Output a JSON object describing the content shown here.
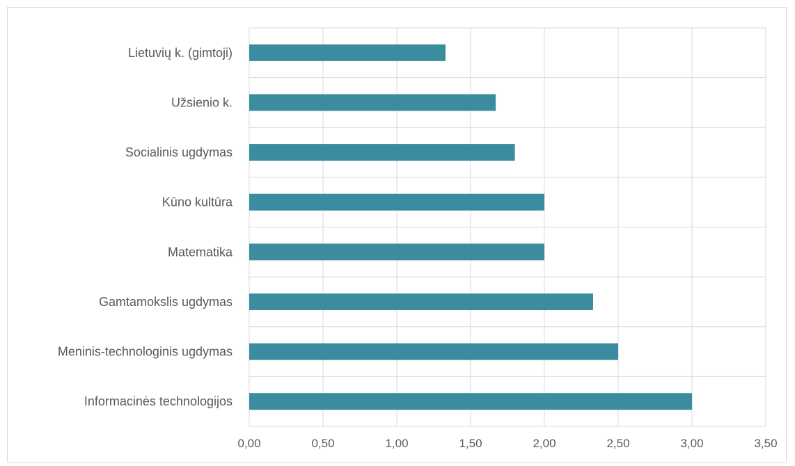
{
  "chart_data": {
    "type": "bar",
    "orientation": "horizontal",
    "categories": [
      "Lietuvių k. (gimtoji)",
      "Užsienio k.",
      "Socialinis ugdymas",
      "Kūno kultūra",
      "Matematika",
      "Gamtamokslis ugdymas",
      "Meninis-technologinis ugdymas",
      "Informacinės technologijos"
    ],
    "values": [
      1.33,
      1.67,
      1.8,
      2.0,
      2.0,
      2.33,
      2.5,
      3.0
    ],
    "xlim": [
      0,
      3.5
    ],
    "xticks": [
      "0,00",
      "0,50",
      "1,00",
      "1,50",
      "2,00",
      "2,50",
      "3,00",
      "3,50"
    ],
    "grid": true,
    "legend": "none",
    "bar_color": "#3A8C9E",
    "gridline_color": "#D9D9D9",
    "text_color": "#595959"
  }
}
